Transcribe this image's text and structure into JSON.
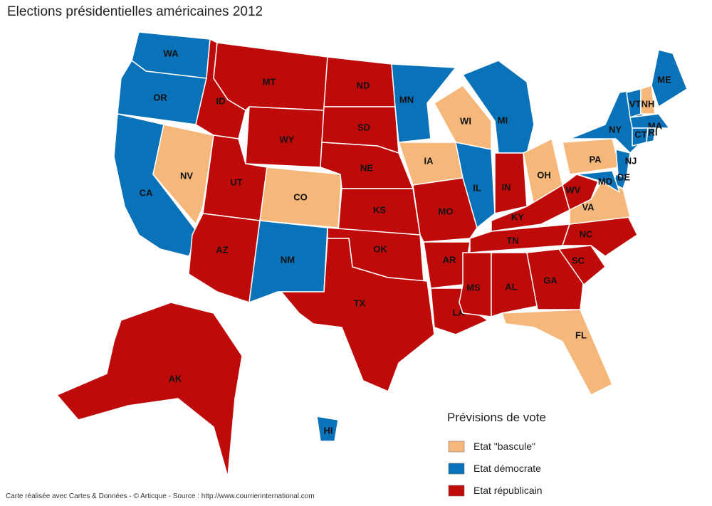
{
  "title": "Elections présidentielles américaines 2012",
  "states": [
    {
      "abbr": "WA",
      "color": "#0a72b8"
    },
    {
      "abbr": "OR",
      "color": "#0a72b8"
    },
    {
      "abbr": "CA",
      "color": "#0a72b8"
    },
    {
      "abbr": "NV",
      "color": "#f5b77a"
    },
    {
      "abbr": "ID",
      "color": "#bf0a0a"
    },
    {
      "abbr": "MT",
      "color": "#bf0a0a"
    },
    {
      "abbr": "WY",
      "color": "#bf0a0a"
    },
    {
      "abbr": "UT",
      "color": "#bf0a0a"
    },
    {
      "abbr": "AZ",
      "color": "#bf0a0a"
    },
    {
      "abbr": "CO",
      "color": "#f5b77a"
    },
    {
      "abbr": "NM",
      "color": "#0a72b8"
    },
    {
      "abbr": "ND",
      "color": "#bf0a0a"
    },
    {
      "abbr": "SD",
      "color": "#bf0a0a"
    },
    {
      "abbr": "NE",
      "color": "#bf0a0a"
    },
    {
      "abbr": "KS",
      "color": "#bf0a0a"
    },
    {
      "abbr": "OK",
      "color": "#bf0a0a"
    },
    {
      "abbr": "TX",
      "color": "#bf0a0a"
    },
    {
      "abbr": "MN",
      "color": "#0a72b8"
    },
    {
      "abbr": "IA",
      "color": "#f5b77a"
    },
    {
      "abbr": "MO",
      "color": "#bf0a0a"
    },
    {
      "abbr": "AR",
      "color": "#bf0a0a"
    },
    {
      "abbr": "LA",
      "color": "#bf0a0a"
    },
    {
      "abbr": "WI",
      "color": "#f5b77a"
    },
    {
      "abbr": "IL",
      "color": "#0a72b8"
    },
    {
      "abbr": "MI",
      "color": "#0a72b8"
    },
    {
      "abbr": "IN",
      "color": "#bf0a0a"
    },
    {
      "abbr": "OH",
      "color": "#f5b77a"
    },
    {
      "abbr": "KY",
      "color": "#bf0a0a"
    },
    {
      "abbr": "TN",
      "color": "#bf0a0a"
    },
    {
      "abbr": "MS",
      "color": "#bf0a0a"
    },
    {
      "abbr": "AL",
      "color": "#bf0a0a"
    },
    {
      "abbr": "GA",
      "color": "#bf0a0a"
    },
    {
      "abbr": "FL",
      "color": "#f5b77a"
    },
    {
      "abbr": "SC",
      "color": "#bf0a0a"
    },
    {
      "abbr": "NC",
      "color": "#bf0a0a"
    },
    {
      "abbr": "VA",
      "color": "#f5b77a"
    },
    {
      "abbr": "WV",
      "color": "#bf0a0a"
    },
    {
      "abbr": "PA",
      "color": "#f5b77a"
    },
    {
      "abbr": "NY",
      "color": "#0a72b8"
    },
    {
      "abbr": "NJ",
      "color": "#0a72b8"
    },
    {
      "abbr": "DE",
      "color": "#0a72b8"
    },
    {
      "abbr": "MD",
      "color": "#0a72b8"
    },
    {
      "abbr": "VT",
      "color": "#0a72b8"
    },
    {
      "abbr": "NH",
      "color": "#f5b77a"
    },
    {
      "abbr": "ME",
      "color": "#0a72b8"
    },
    {
      "abbr": "MA",
      "color": "#0a72b8"
    },
    {
      "abbr": "CT",
      "color": "#0a72b8"
    },
    {
      "abbr": "RI",
      "color": "#0a72b8"
    },
    {
      "abbr": "AK",
      "color": "#bf0a0a"
    },
    {
      "abbr": "HI",
      "color": "#0a72b8"
    }
  ],
  "legend": {
    "title": "Prévisions de vote",
    "items": [
      {
        "label": "Etat \"bascule\"",
        "color": "#f5b77a"
      },
      {
        "label": "Etat démocrate",
        "color": "#0a72b8"
      },
      {
        "label": "Etat républicain",
        "color": "#bf0a0a"
      }
    ]
  },
  "footer": "Carte réalisée avec Cartes & Données - © Articque - Source : http://www.courrierinternational.com"
}
